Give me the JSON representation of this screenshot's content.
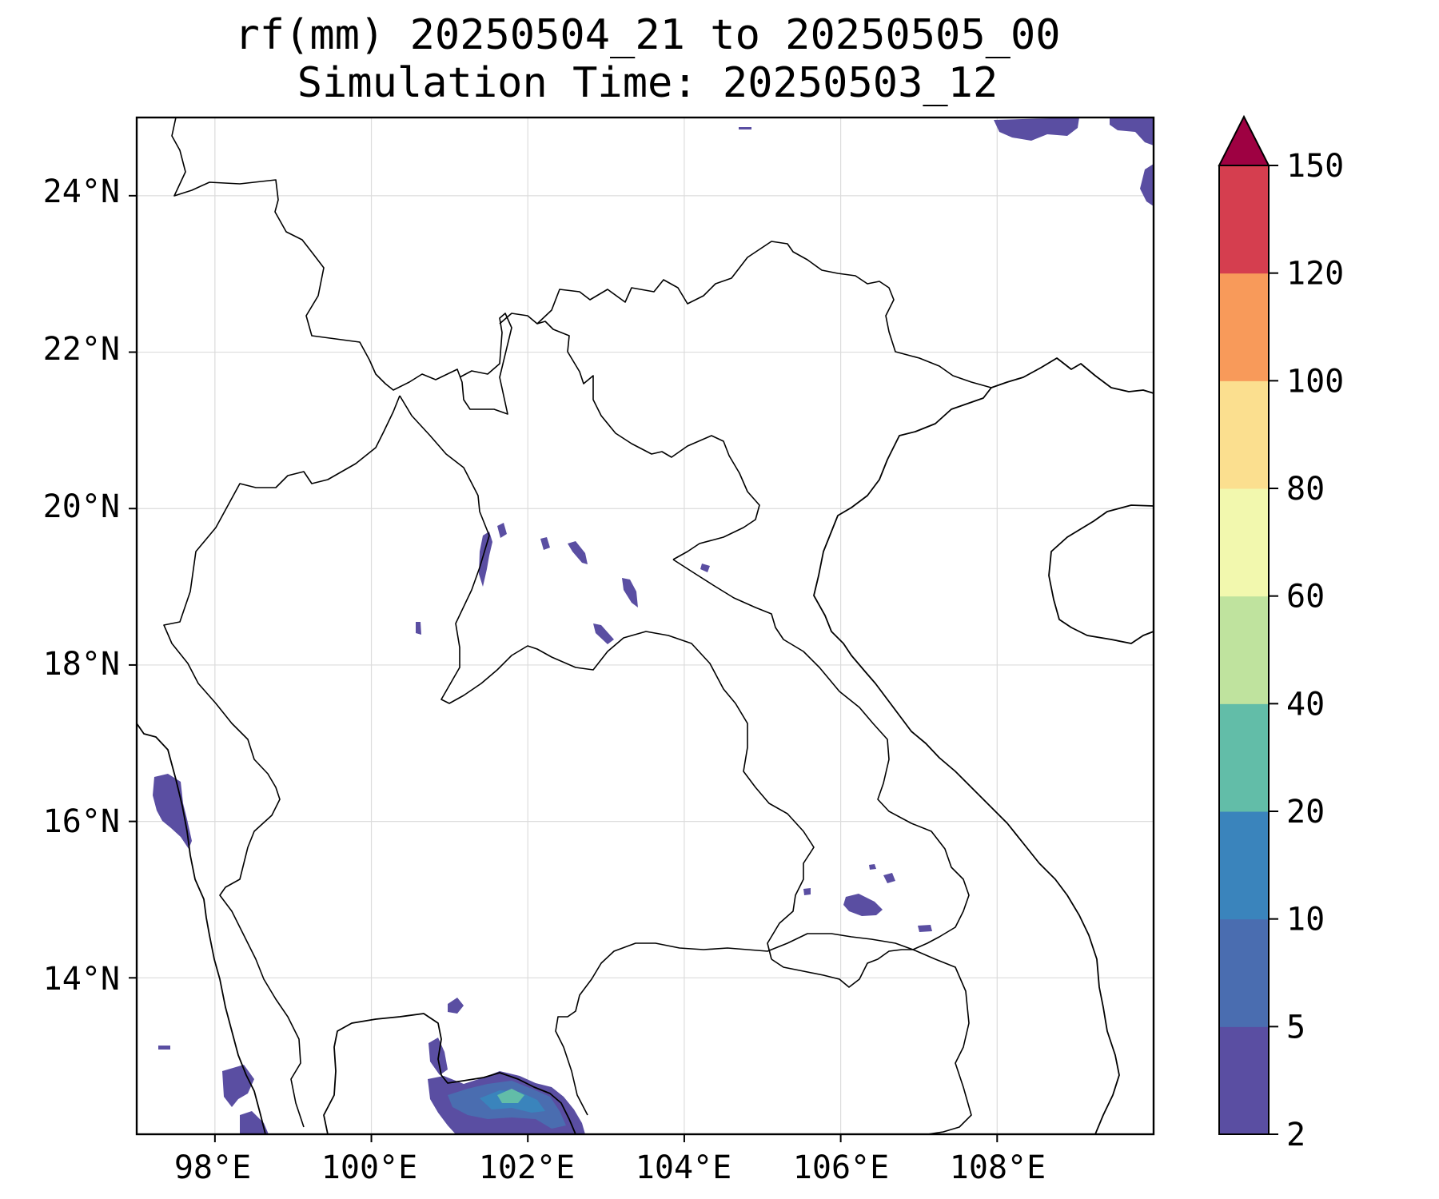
{
  "title": {
    "line1": "rf(mm) 20250504_21 to 20250505_00",
    "line2": "Simulation Time: 20250503_12"
  },
  "map": {
    "lon_ticks": [
      "98°E",
      "100°E",
      "102°E",
      "104°E",
      "106°E",
      "108°E"
    ],
    "lat_ticks": [
      "24°N",
      "22°N",
      "20°N",
      "18°N",
      "16°N",
      "14°N"
    ],
    "extent": {
      "lon": [
        97,
        110
      ],
      "lat": [
        12,
        25
      ]
    },
    "gridlines": true
  },
  "colorbar": {
    "tick_labels": [
      "2",
      "5",
      "10",
      "20",
      "40",
      "60",
      "80",
      "100",
      "120",
      "150"
    ],
    "extend": "max",
    "colors": [
      "#5a4ea2",
      "#4a6db0",
      "#3a84bc",
      "#62bda8",
      "#bfe39e",
      "#f2f8ae",
      "#fbdf8f",
      "#f89a5a",
      "#d53e4f",
      "#9e0142"
    ]
  },
  "chart_data": {
    "type": "heatmap",
    "variable": "rf(mm)",
    "levels": [
      2,
      5,
      10,
      20,
      40,
      60,
      80,
      100,
      120,
      150
    ],
    "regions": [
      {
        "lon": 101.6,
        "lat": 12.5,
        "max_level": "20-40"
      },
      {
        "lon": 97.4,
        "lat": 16.2,
        "max_level": "2-5"
      },
      {
        "lon": 106.2,
        "lat": 14.9,
        "max_level": "2-5"
      },
      {
        "lon": 108.3,
        "lat": 24.8,
        "max_level": "2-5"
      },
      {
        "lon": 109.8,
        "lat": 24.8,
        "max_level": "2-5"
      },
      {
        "lon": 101.6,
        "lat": 19.5,
        "max_level": "2-5"
      },
      {
        "lon": 103.6,
        "lat": 18.8,
        "max_level": "2-5"
      }
    ]
  }
}
